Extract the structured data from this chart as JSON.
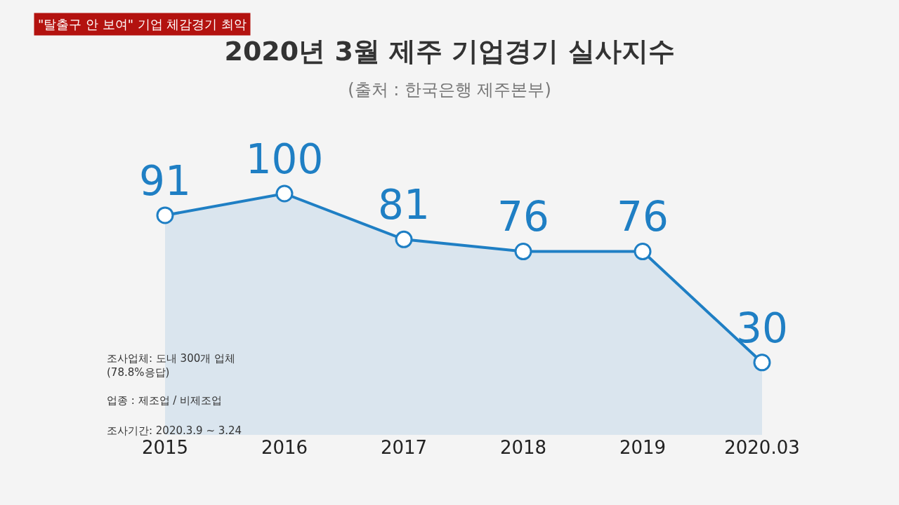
{
  "chart_data": {
    "type": "area",
    "title": "2020년 3월 제주 기업경기 실사지수",
    "subtitle": "(출처 : 한국은행 제주본부)",
    "categories": [
      "2015",
      "2016",
      "2017",
      "2018",
      "2019",
      "2020.03"
    ],
    "series": [
      {
        "color": "#1f7fc4",
        "values": [
          91,
          100,
          81,
          76,
          76,
          30
        ]
      }
    ],
    "data_labels": true,
    "marker": "circle",
    "line_style": "solid",
    "grid": false,
    "legend": false,
    "tick_labels": "x",
    "annotations": [
      "\"탈출구 안 보여\" 기업 체감경기 최악",
      "조사업체: 도내 300개 업체\n(78.8%응답)",
      "업종 : 제조업 / 비제조업",
      "조사기간: 2020.3.9 ~ 3.24"
    ]
  }
}
